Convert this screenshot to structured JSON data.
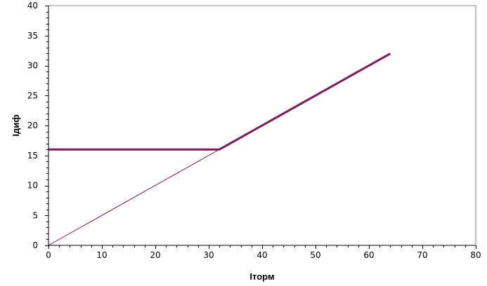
{
  "chart_data": {
    "type": "line",
    "xlabel": "Iторм",
    "ylabel": "Iдиф",
    "xlim": [
      0,
      80
    ],
    "ylim": [
      0,
      40
    ],
    "x_ticks": [
      0,
      10,
      20,
      30,
      40,
      50,
      60,
      70,
      80
    ],
    "y_ticks": [
      0,
      5,
      10,
      15,
      20,
      25,
      30,
      35,
      40
    ],
    "grid": false,
    "legend": "none",
    "series": [
      {
        "x": [
          0,
          32,
          64
        ],
        "y": [
          16,
          16,
          32
        ],
        "color": "#7B1A5C",
        "style": "thick"
      },
      {
        "x": [
          0,
          32
        ],
        "y": [
          0,
          16
        ],
        "color": "#7B1A5C",
        "style": "thin"
      }
    ]
  }
}
